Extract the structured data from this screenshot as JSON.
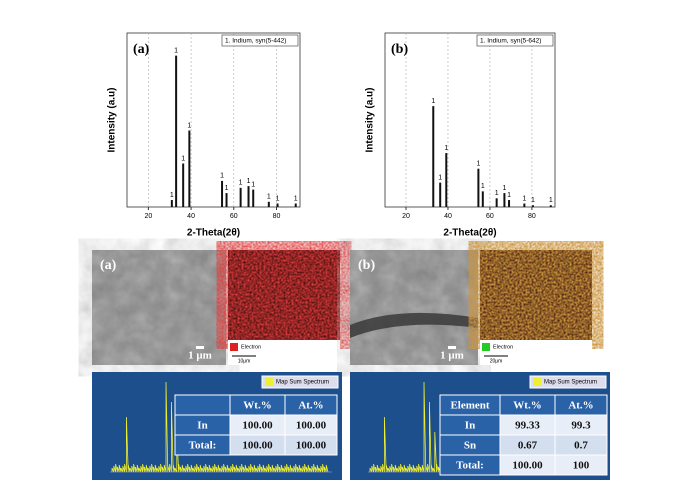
{
  "chart_data": [
    {
      "type": "stem",
      "panel_label": "(a)",
      "legend": "1. Indium, syn(5-442)",
      "ylabel": "Intensity (a.u)",
      "xlabel": "2-Theta(2θ)",
      "x": [
        31,
        33,
        36.3,
        39.2,
        54.5,
        56.6,
        63.2,
        66.9,
        69.1,
        76.4,
        80.5,
        89.0
      ],
      "values": [
        4,
        87,
        25,
        44,
        15,
        8,
        11,
        12,
        10,
        3,
        2,
        2
      ],
      "peak_labels": [
        "1",
        "1",
        "1",
        "1",
        "1",
        "1",
        "1",
        "1",
        "1",
        "1",
        "1",
        "1"
      ],
      "xlim": [
        10,
        91
      ],
      "ylim": [
        0,
        100
      ],
      "xticks": [
        20,
        40,
        60,
        80
      ],
      "grid": true
    },
    {
      "type": "stem",
      "panel_label": "(b)",
      "legend": "1. Indium, syn(5-642)",
      "ylabel": "Intensity (a.u)",
      "xlabel": "2-Theta(2θ)",
      "x": [
        33,
        36.3,
        39.2,
        54.5,
        56.6,
        63.2,
        66.9,
        69.1,
        76.4,
        80.5,
        89.0
      ],
      "values": [
        58,
        14,
        31,
        22,
        9,
        5,
        8,
        4,
        2,
        1,
        1
      ],
      "peak_labels": [
        "1",
        "1",
        "1",
        "1",
        "1",
        "1",
        "1",
        "1",
        "1",
        "1",
        "1"
      ],
      "xlim": [
        10,
        91
      ],
      "ylim": [
        0,
        100
      ],
      "xticks": [
        20,
        40,
        60,
        80
      ],
      "grid": true
    }
  ],
  "sem_panels": [
    {
      "label": "(a)",
      "scale": "1 μm",
      "map_legend": "Electron",
      "map_scale": "10μm"
    },
    {
      "label": "(b)",
      "scale": "1 μm",
      "map_legend": "Electron",
      "map_scale": "20μm"
    }
  ],
  "eds_panels": [
    {
      "legend": "Map Sum Spectrum",
      "table": {
        "header": [
          "",
          "Wt.%",
          "At.%"
        ],
        "rows": [
          [
            "In",
            "100.00",
            "100.00"
          ],
          [
            "Total:",
            "100.00",
            "100.00"
          ]
        ]
      }
    },
    {
      "legend": "Map Sum Spectrum",
      "table": {
        "header": [
          "Element",
          "Wt.%",
          "At.%"
        ],
        "rows": [
          [
            "In",
            "99.33",
            "99.3"
          ],
          [
            "Sn",
            "0.67",
            "0.7"
          ],
          [
            "Total:",
            "100.00",
            "100"
          ]
        ]
      }
    }
  ]
}
